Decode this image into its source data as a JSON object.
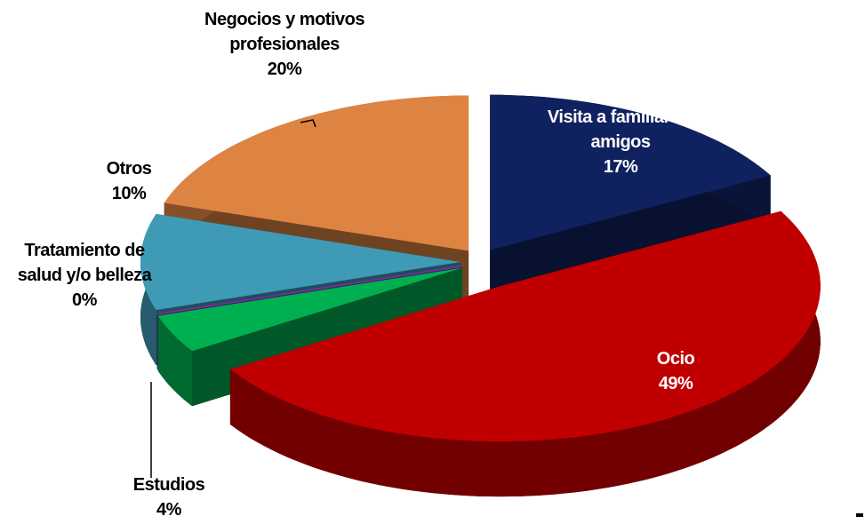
{
  "chart_data": {
    "type": "pie",
    "categories": [
      "Visita a familiares/ amigos",
      "Ocio",
      "Estudios",
      "Tratamiento de salud y/o belleza",
      "Otros",
      "Negocios y motivos profesionales"
    ],
    "values": [
      17,
      49,
      4,
      0,
      10,
      20
    ],
    "value_labels": [
      "17%",
      "49%",
      "4%",
      "0%",
      "10%",
      "20%"
    ],
    "colors": [
      "#10215f",
      "#c00000",
      "#00b050",
      "#7030a0",
      "#3f9ab5",
      "#de8443"
    ]
  }
}
